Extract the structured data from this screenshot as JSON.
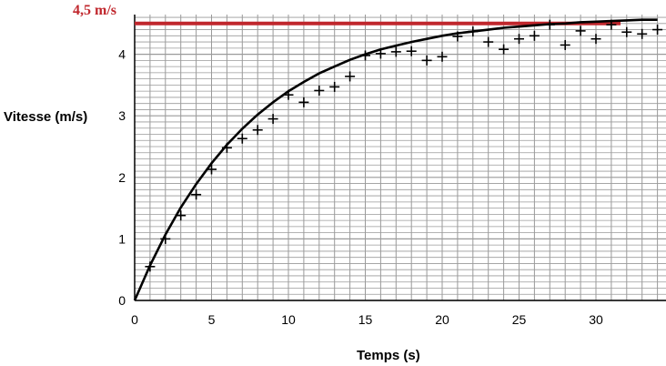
{
  "chart_data": {
    "type": "scatter",
    "title": "",
    "xlabel": "Temps (s)",
    "ylabel": "Vitesse (m/s)",
    "xlim": [
      0,
      34
    ],
    "ylim": [
      0,
      4.5
    ],
    "x_ticks": [
      0,
      5,
      10,
      15,
      20,
      25,
      30
    ],
    "y_ticks": [
      0,
      1,
      2,
      3,
      4
    ],
    "grid": true,
    "annotation": {
      "label": "4,5 m/s",
      "value": 4.5,
      "color": "#c0272d"
    },
    "series": [
      {
        "type": "scatter",
        "marker": "+",
        "x": [
          1,
          2,
          3,
          4,
          5,
          6,
          7,
          8,
          9,
          10,
          11,
          12,
          13,
          14,
          15,
          16,
          17,
          18,
          19,
          20,
          21,
          22,
          23,
          24,
          25,
          26,
          27,
          28,
          29,
          30,
          31,
          32,
          33,
          34
        ],
        "y": [
          0.55,
          1.0,
          1.38,
          1.72,
          2.13,
          2.48,
          2.63,
          2.77,
          2.95,
          3.34,
          3.22,
          3.41,
          3.47,
          3.64,
          3.98,
          4.01,
          4.04,
          4.05,
          3.9,
          3.96,
          4.29,
          4.37,
          4.2,
          4.08,
          4.25,
          4.3,
          4.48,
          4.15,
          4.38,
          4.25,
          4.48,
          4.36,
          4.33,
          4.4
        ]
      },
      {
        "type": "line",
        "x": [
          0,
          1,
          2,
          3,
          4,
          5,
          6,
          7,
          8,
          9,
          10,
          11,
          12,
          13,
          14,
          15,
          16,
          17,
          18,
          19,
          20,
          21,
          22,
          23,
          24,
          25,
          26,
          27,
          28,
          29,
          30,
          31,
          32,
          33,
          34
        ],
        "y": [
          0,
          0.57,
          1.07,
          1.51,
          1.89,
          2.23,
          2.53,
          2.79,
          3.02,
          3.22,
          3.4,
          3.55,
          3.69,
          3.8,
          3.91,
          4.0,
          4.08,
          4.14,
          4.2,
          4.25,
          4.3,
          4.34,
          4.37,
          4.4,
          4.43,
          4.45,
          4.47,
          4.49,
          4.5,
          4.52,
          4.53,
          4.54,
          4.55,
          4.56,
          4.56
        ]
      }
    ]
  }
}
